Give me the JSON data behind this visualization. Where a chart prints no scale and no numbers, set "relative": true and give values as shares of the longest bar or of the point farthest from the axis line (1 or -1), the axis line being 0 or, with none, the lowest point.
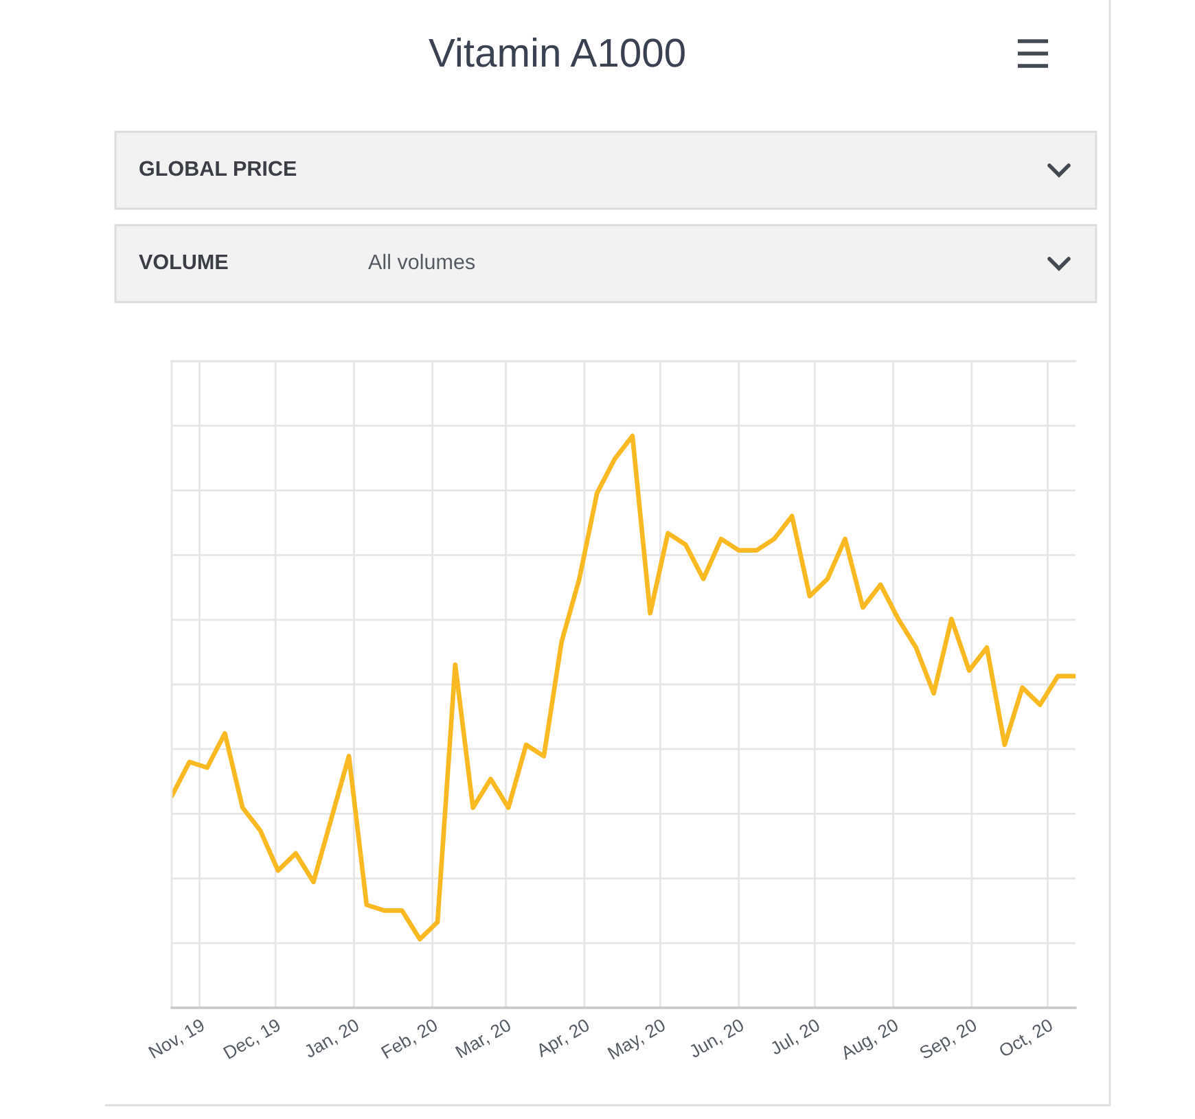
{
  "chart_data": {
    "type": "line",
    "title": "Vitamin A1000",
    "annotations": [
      "GLOBAL PRICE",
      "VOLUME",
      "All volumes"
    ],
    "x": [
      "2019-10-21",
      "2019-10-28",
      "2019-11-04",
      "2019-11-11",
      "2019-11-18",
      "2019-11-25",
      "2019-12-02",
      "2019-12-09",
      "2019-12-16",
      "2019-12-23",
      "2019-12-30",
      "2020-01-06",
      "2020-01-13",
      "2020-01-20",
      "2020-01-27",
      "2020-02-03",
      "2020-02-10",
      "2020-02-17",
      "2020-02-24",
      "2020-03-02",
      "2020-03-09",
      "2020-03-16",
      "2020-03-23",
      "2020-03-30",
      "2020-04-06",
      "2020-04-13",
      "2020-04-20",
      "2020-04-27",
      "2020-05-04",
      "2020-05-11",
      "2020-05-18",
      "2020-05-25",
      "2020-06-01",
      "2020-06-08",
      "2020-06-15",
      "2020-06-22",
      "2020-06-29",
      "2020-07-06",
      "2020-07-13",
      "2020-07-20",
      "2020-07-27",
      "2020-08-03",
      "2020-08-10",
      "2020-08-17",
      "2020-08-24",
      "2020-08-31",
      "2020-09-07",
      "2020-09-14",
      "2020-09-21",
      "2020-09-28",
      "2020-10-05",
      "2020-10-12"
    ],
    "values": [
      0.37,
      0.43,
      0.42,
      0.48,
      0.35,
      0.31,
      0.24,
      0.27,
      0.22,
      0.33,
      0.44,
      0.18,
      0.17,
      0.17,
      0.12,
      0.15,
      0.6,
      0.35,
      0.4,
      0.35,
      0.46,
      0.44,
      0.64,
      0.75,
      0.9,
      0.96,
      1.0,
      0.69,
      0.83,
      0.81,
      0.75,
      0.82,
      0.8,
      0.8,
      0.82,
      0.86,
      0.72,
      0.75,
      0.82,
      0.7,
      0.74,
      0.68,
      0.63,
      0.55,
      0.68,
      0.59,
      0.63,
      0.46,
      0.56,
      0.53,
      0.58,
      0.58
    ],
    "color": "#f9b922",
    "relative": true,
    "xlim": [
      "2019-10-21",
      "2020-10-12"
    ],
    "xticks": [
      {
        "value": "2019-11-01",
        "label": "Nov, 19"
      },
      {
        "value": "2019-12-01",
        "label": "Dec, 19"
      },
      {
        "value": "2020-01-01",
        "label": "Jan, 20"
      },
      {
        "value": "2020-02-01",
        "label": "Feb, 20"
      },
      {
        "value": "2020-03-01",
        "label": "Mar, 20"
      },
      {
        "value": "2020-04-01",
        "label": "Apr, 20"
      },
      {
        "value": "2020-05-01",
        "label": "May, 20"
      },
      {
        "value": "2020-06-01",
        "label": "Jun, 20"
      },
      {
        "value": "2020-07-01",
        "label": "Jul, 20"
      },
      {
        "value": "2020-08-01",
        "label": "Aug, 20"
      },
      {
        "value": "2020-09-01",
        "label": "Sep, 20"
      },
      {
        "value": "2020-10-01",
        "label": "Oct, 20"
      }
    ],
    "grid": true,
    "tick_labels": "x"
  }
}
